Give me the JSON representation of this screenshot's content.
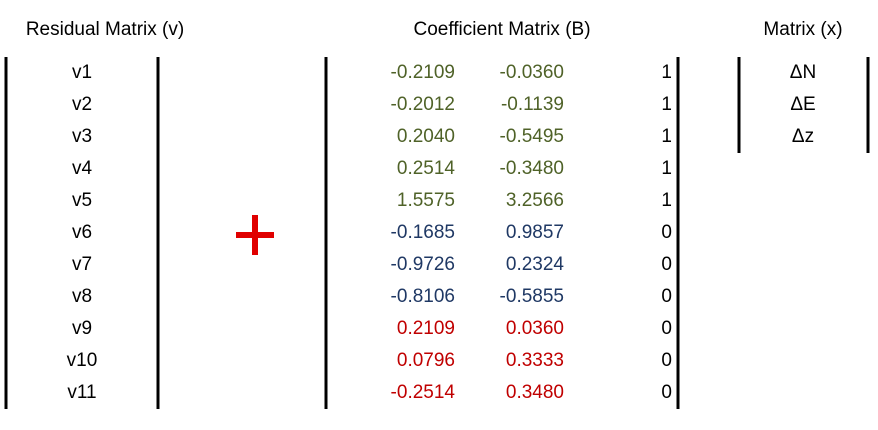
{
  "residual_matrix": {
    "title": "Residual Matrix (v)",
    "rows": [
      "v1",
      "v2",
      "v3",
      "v4",
      "v5",
      "v6",
      "v7",
      "v8",
      "v9",
      "v10",
      "v11"
    ]
  },
  "coefficient_matrix": {
    "title": "Coefficient Matrix (B)",
    "groups": [
      {
        "color": "#4f6228",
        "rows": [
          [
            "-0.2109",
            "-0.0360",
            "1"
          ],
          [
            "-0.2012",
            "-0.1139",
            "1"
          ],
          [
            "0.2040",
            "-0.5495",
            "1"
          ],
          [
            "0.2514",
            "-0.3480",
            "1"
          ],
          [
            "1.5575",
            "3.2566",
            "1"
          ]
        ]
      },
      {
        "color": "#1f3864",
        "rows": [
          [
            "-0.1685",
            "0.9857",
            "0"
          ],
          [
            "-0.9726",
            "0.2324",
            "0"
          ],
          [
            "-0.8106",
            "-0.5855",
            "0"
          ]
        ]
      },
      {
        "color": "#c00000",
        "rows": [
          [
            "0.2109",
            "0.0360",
            "0"
          ],
          [
            "0.0796",
            "0.3333",
            "0"
          ],
          [
            "-0.2514",
            "0.3480",
            "0"
          ]
        ]
      }
    ]
  },
  "unknown_matrix": {
    "title": "Matrix (x)",
    "rows": [
      "ΔN",
      "ΔE",
      "Δz"
    ]
  }
}
